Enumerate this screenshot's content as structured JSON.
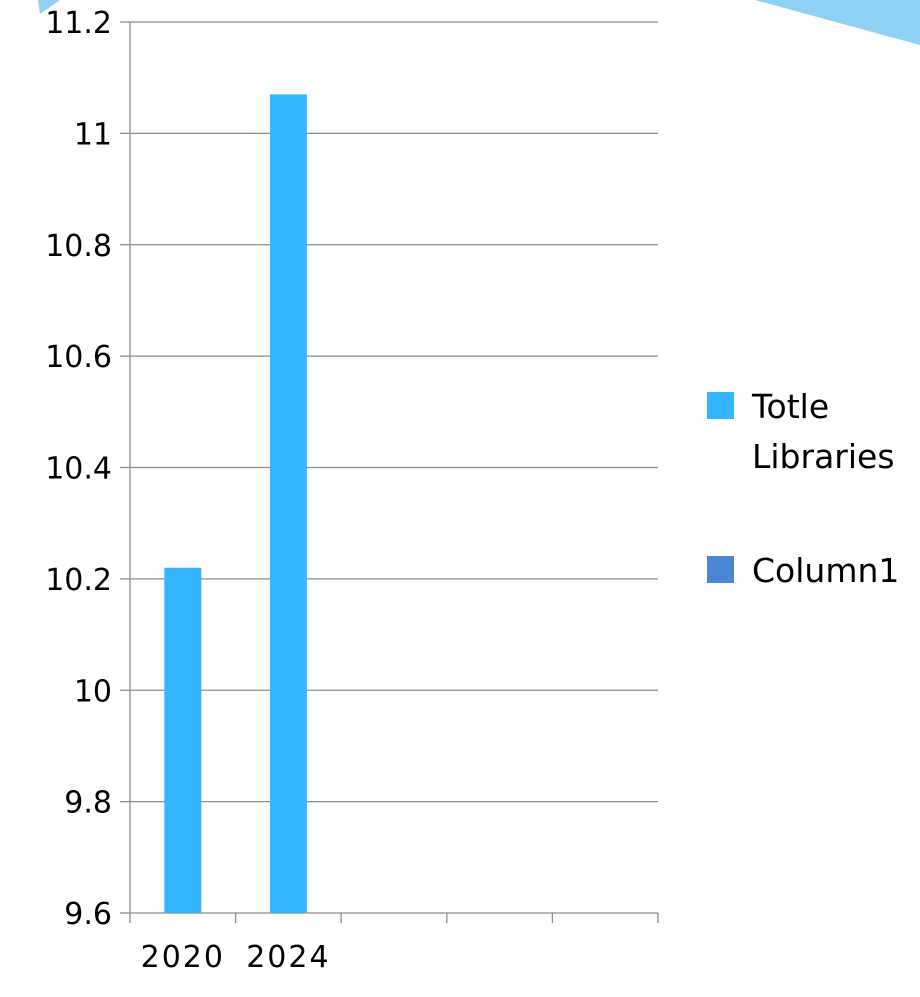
{
  "colors": {
    "series_1": "#33b5ff",
    "series_2": "#4a86d6",
    "grid": "#8c8c8c",
    "corner_accent": "#8fd0f5"
  },
  "chart_data": {
    "type": "bar",
    "categories": [
      "2020",
      "2024",
      "",
      "",
      ""
    ],
    "series": [
      {
        "name": "Totle Libraries",
        "values": [
          10.22,
          11.07,
          null,
          null,
          null
        ]
      },
      {
        "name": "Column1",
        "values": [
          null,
          null,
          null,
          null,
          null
        ]
      }
    ],
    "yticks": [
      "9.6",
      "9.8",
      "10",
      "10.2",
      "10.4",
      "10.6",
      "10.8",
      "11",
      "11.2"
    ],
    "ylim": [
      9.6,
      11.2
    ],
    "grid": true,
    "legend": "right",
    "title": "",
    "xlabel": "",
    "ylabel": ""
  }
}
